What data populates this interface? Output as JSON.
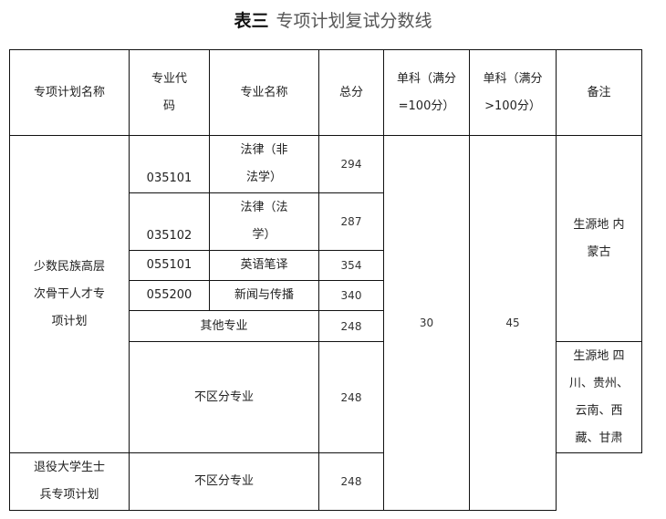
{
  "title": {
    "prefix": "表三",
    "text": "专项计划复试分数线"
  },
  "headers": [
    "专项计划名称",
    "专业代码",
    "专业名称",
    "总分",
    "单科（满分=100分）",
    "单科（满分>100分）",
    "备注"
  ],
  "plans": [
    "少数民族高层次骨干人才专项计划",
    "退役大学生士兵专项计划"
  ],
  "rows": [
    {
      "code": "035101",
      "name": "法律（非法学）",
      "total": "294"
    },
    {
      "code": "035102",
      "name": "法律（法学）",
      "total": "287"
    },
    {
      "code": "055101",
      "name": "英语笔译",
      "total": "354"
    },
    {
      "code": "055200",
      "name": "新闻与传播",
      "total": "340"
    }
  ],
  "other": {
    "name": "其他专业",
    "total": "248"
  },
  "undiff1": {
    "name": "不区分专业",
    "total": "248"
  },
  "undiff2": {
    "name": "不区分专业",
    "total": "248"
  },
  "single100": "30",
  "singleOver100": "45",
  "remarks": [
    "生源地 内蒙古",
    "生源地 四川、贵州、云南、西藏、甘肃"
  ]
}
